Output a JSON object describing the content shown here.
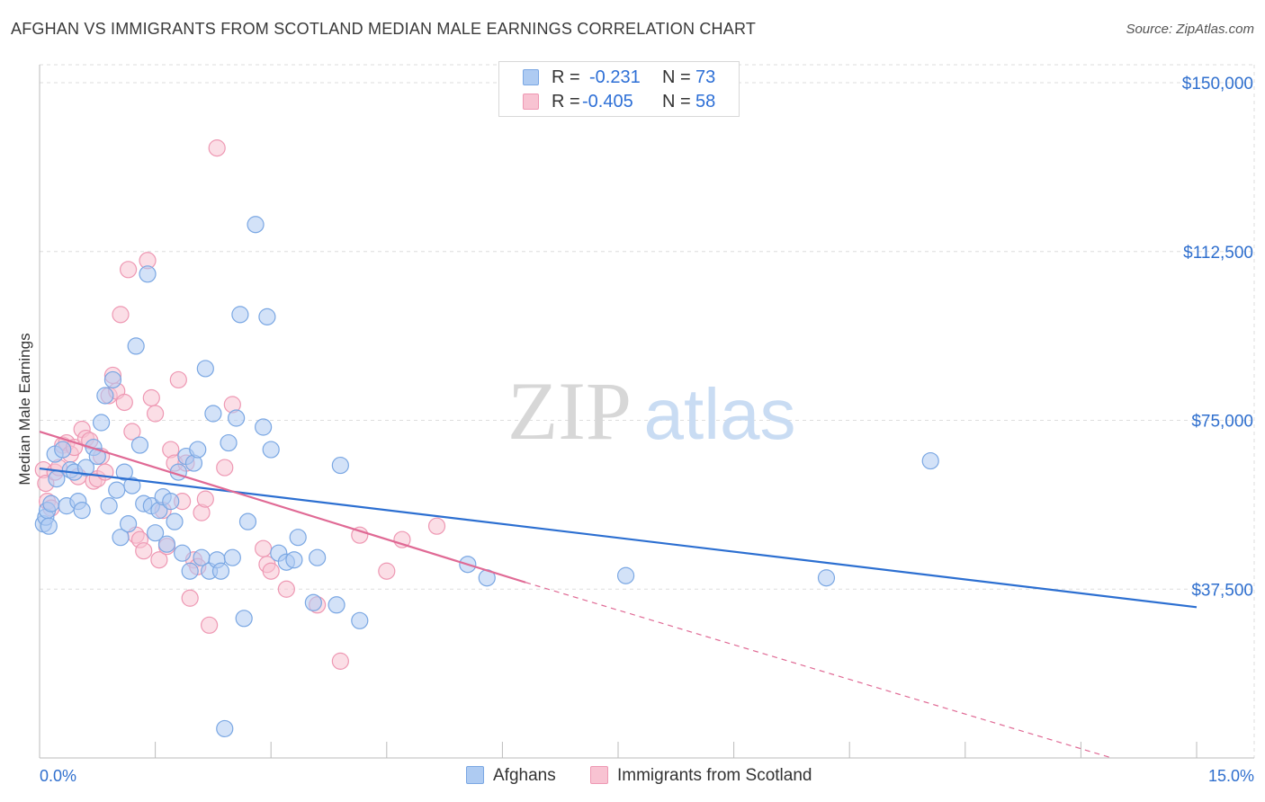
{
  "header": {
    "title": "AFGHAN VS IMMIGRANTS FROM SCOTLAND MEDIAN MALE EARNINGS CORRELATION CHART",
    "source": "Source: ZipAtlas.com"
  },
  "watermark": {
    "zip": "ZIP",
    "atlas": "atlas"
  },
  "legend": {
    "rows": [
      {
        "r_label": "R =",
        "r_value": "-0.231",
        "n_label": "N =",
        "n_value": "73"
      },
      {
        "r_label": "R =",
        "r_value": "-0.405",
        "n_label": "N =",
        "n_value": "58"
      }
    ]
  },
  "bottom_legend": {
    "series_a": "Afghans",
    "series_b": "Immigrants from Scotland"
  },
  "colors": {
    "blue_fill": "#aecbf2",
    "blue_stroke": "#7aa7e3",
    "blue_line": "#2c6fd1",
    "pink_fill": "#f8c3d2",
    "pink_stroke": "#ee98b3",
    "pink_line": "#e06a95",
    "tick_label": "#2f6fce",
    "grid": "#dedede"
  },
  "chart_data": {
    "type": "scatter",
    "title": "AFGHAN VS IMMIGRANTS FROM SCOTLAND MEDIAN MALE EARNINGS CORRELATION CHART",
    "xlabel": "",
    "ylabel": "Median Male Earnings",
    "xlim": [
      0,
      15
    ],
    "ylim": [
      0,
      154000
    ],
    "x_tick_labels": [
      "0.0%",
      "15.0%"
    ],
    "y_ticks": [
      37500,
      75000,
      112500,
      150000
    ],
    "y_tick_labels": [
      "$37,500",
      "$75,000",
      "$112,500",
      "$150,000"
    ],
    "grid": true,
    "series": [
      {
        "name": "Afghans",
        "r": -0.231,
        "n": 73,
        "trend": {
          "x0": 0.0,
          "y0": 64300,
          "x1": 15.0,
          "y1": 33500,
          "dashed_from": null
        },
        "points": [
          [
            0.05,
            52000
          ],
          [
            0.08,
            53500
          ],
          [
            0.1,
            55000
          ],
          [
            0.12,
            51500
          ],
          [
            0.15,
            56500
          ],
          [
            0.2,
            67500
          ],
          [
            0.22,
            62000
          ],
          [
            0.3,
            68500
          ],
          [
            0.35,
            56000
          ],
          [
            0.4,
            64000
          ],
          [
            0.45,
            63500
          ],
          [
            0.5,
            57000
          ],
          [
            0.55,
            55000
          ],
          [
            0.6,
            64500
          ],
          [
            0.7,
            69000
          ],
          [
            0.75,
            67000
          ],
          [
            0.8,
            74500
          ],
          [
            0.85,
            80500
          ],
          [
            0.9,
            56000
          ],
          [
            0.95,
            84000
          ],
          [
            1.0,
            59500
          ],
          [
            1.05,
            49000
          ],
          [
            1.1,
            63500
          ],
          [
            1.15,
            52000
          ],
          [
            1.2,
            60500
          ],
          [
            1.25,
            91500
          ],
          [
            1.3,
            69500
          ],
          [
            1.35,
            56500
          ],
          [
            1.4,
            107500
          ],
          [
            1.45,
            56000
          ],
          [
            1.5,
            50000
          ],
          [
            1.55,
            55000
          ],
          [
            1.6,
            58000
          ],
          [
            1.65,
            47500
          ],
          [
            1.7,
            57000
          ],
          [
            1.75,
            52500
          ],
          [
            1.8,
            63500
          ],
          [
            1.85,
            45500
          ],
          [
            1.9,
            67000
          ],
          [
            1.95,
            41500
          ],
          [
            2.0,
            65500
          ],
          [
            2.05,
            68500
          ],
          [
            2.1,
            44500
          ],
          [
            2.15,
            86500
          ],
          [
            2.2,
            41500
          ],
          [
            2.25,
            76500
          ],
          [
            2.3,
            44000
          ],
          [
            2.35,
            41500
          ],
          [
            2.4,
            6500
          ],
          [
            2.45,
            70000
          ],
          [
            2.5,
            44500
          ],
          [
            2.55,
            75500
          ],
          [
            2.6,
            98500
          ],
          [
            2.65,
            31000
          ],
          [
            2.7,
            52500
          ],
          [
            2.8,
            118500
          ],
          [
            2.9,
            73500
          ],
          [
            2.95,
            98000
          ],
          [
            3.0,
            68500
          ],
          [
            3.1,
            45500
          ],
          [
            3.2,
            43500
          ],
          [
            3.3,
            44000
          ],
          [
            3.35,
            49000
          ],
          [
            3.55,
            34500
          ],
          [
            3.6,
            44500
          ],
          [
            3.85,
            34000
          ],
          [
            3.9,
            65000
          ],
          [
            4.15,
            30500
          ],
          [
            5.55,
            43000
          ],
          [
            5.8,
            40000
          ],
          [
            7.6,
            40500
          ],
          [
            10.2,
            40000
          ],
          [
            11.55,
            66000
          ]
        ]
      },
      {
        "name": "Immigrants from Scotland",
        "r": -0.405,
        "n": 58,
        "trend": {
          "x0": 0.0,
          "y0": 72500,
          "x1": 6.3,
          "y1": 39000,
          "dashed_to_x": 13.9,
          "dashed_to_y": -1500
        },
        "points": [
          [
            0.05,
            64000
          ],
          [
            0.08,
            61000
          ],
          [
            0.1,
            57000
          ],
          [
            0.15,
            55500
          ],
          [
            0.2,
            63500
          ],
          [
            0.25,
            64500
          ],
          [
            0.3,
            69500
          ],
          [
            0.35,
            70000
          ],
          [
            0.4,
            67500
          ],
          [
            0.45,
            69000
          ],
          [
            0.5,
            62500
          ],
          [
            0.55,
            73000
          ],
          [
            0.6,
            71000
          ],
          [
            0.65,
            70500
          ],
          [
            0.7,
            61500
          ],
          [
            0.75,
            62000
          ],
          [
            0.8,
            67000
          ],
          [
            0.85,
            63500
          ],
          [
            0.9,
            80500
          ],
          [
            0.95,
            85000
          ],
          [
            1.0,
            81500
          ],
          [
            1.05,
            98500
          ],
          [
            1.1,
            79000
          ],
          [
            1.15,
            108500
          ],
          [
            1.2,
            72500
          ],
          [
            1.25,
            49500
          ],
          [
            1.3,
            48500
          ],
          [
            1.35,
            46000
          ],
          [
            1.4,
            110500
          ],
          [
            1.45,
            80000
          ],
          [
            1.5,
            76500
          ],
          [
            1.55,
            44000
          ],
          [
            1.6,
            55000
          ],
          [
            1.65,
            47000
          ],
          [
            1.7,
            68500
          ],
          [
            1.75,
            65500
          ],
          [
            1.8,
            84000
          ],
          [
            1.85,
            57000
          ],
          [
            1.9,
            65500
          ],
          [
            1.95,
            35500
          ],
          [
            2.0,
            44000
          ],
          [
            2.05,
            42500
          ],
          [
            2.1,
            54500
          ],
          [
            2.15,
            57500
          ],
          [
            2.2,
            29500
          ],
          [
            2.3,
            135500
          ],
          [
            2.4,
            64500
          ],
          [
            2.5,
            78500
          ],
          [
            2.9,
            46500
          ],
          [
            2.95,
            43000
          ],
          [
            3.0,
            41500
          ],
          [
            3.2,
            37500
          ],
          [
            3.6,
            34000
          ],
          [
            3.9,
            21500
          ],
          [
            4.15,
            49500
          ],
          [
            4.5,
            41500
          ],
          [
            4.7,
            48500
          ],
          [
            5.15,
            51500
          ]
        ]
      }
    ]
  }
}
